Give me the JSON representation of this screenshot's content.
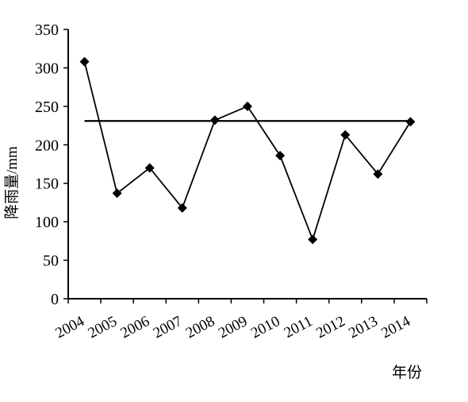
{
  "chart_data": {
    "type": "line",
    "title": "",
    "xlabel": "年份",
    "ylabel": "降雨量/mm",
    "categories": [
      "2004",
      "2005",
      "2006",
      "2007",
      "2008",
      "2009",
      "2010",
      "2011",
      "2012",
      "2013",
      "2014"
    ],
    "series": [
      {
        "values": [
          308,
          137,
          170,
          118,
          232,
          250,
          186,
          77,
          213,
          162,
          230
        ],
        "marker": "diamond",
        "color": "#000000"
      }
    ],
    "reference_line": {
      "y": 231,
      "color": "#000000"
    },
    "ylim": [
      0,
      350
    ],
    "yticks": [
      0,
      50,
      100,
      150,
      200,
      250,
      300,
      350
    ],
    "grid": false,
    "legend": "none"
  }
}
